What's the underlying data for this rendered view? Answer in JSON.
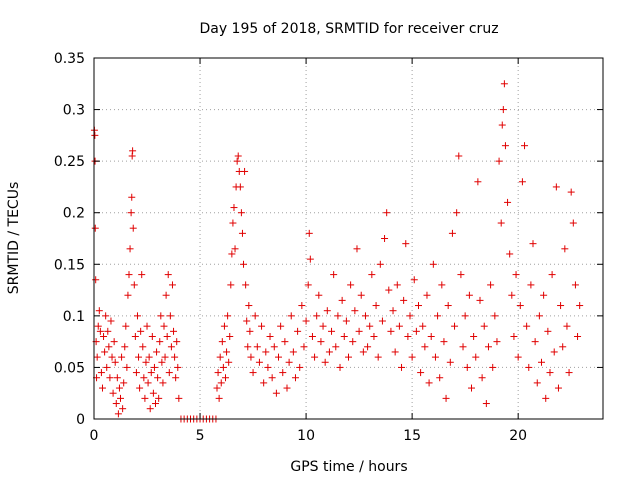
{
  "chart_data": {
    "type": "scatter",
    "title": "Day 195 of 2018, SRMTID for receiver cruz",
    "xlabel": "GPS time / hours",
    "ylabel": "SRMTID / TECUs",
    "xlim": [
      0,
      24
    ],
    "ylim": [
      0,
      0.35
    ],
    "xticks": [
      0,
      5,
      10,
      15,
      20
    ],
    "yticks": [
      0,
      0.05,
      0.1,
      0.15,
      0.2,
      0.25,
      0.3,
      0.35
    ],
    "ytick_labels": [
      "0",
      "0.05",
      "0.1",
      "0.15",
      "0.2",
      "0.25",
      "0.3",
      "0.35"
    ],
    "grid": true,
    "marker": "plus",
    "color": "#e00000",
    "series": [
      {
        "values": [
          [
            0.02,
            0.28
          ],
          [
            0.04,
            0.275
          ],
          [
            0.05,
            0.25
          ],
          [
            0.06,
            0.185
          ],
          [
            0.08,
            0.135
          ],
          [
            0.1,
            0.075
          ],
          [
            0.12,
            0.04
          ],
          [
            0.15,
            0.06
          ],
          [
            0.2,
            0.09
          ],
          [
            0.25,
            0.105
          ],
          [
            0.3,
            0.085
          ],
          [
            0.35,
            0.045
          ],
          [
            0.4,
            0.03
          ],
          [
            0.45,
            0.08
          ],
          [
            0.5,
            0.065
          ],
          [
            0.55,
            0.1
          ],
          [
            0.6,
            0.05
          ],
          [
            0.65,
            0.085
          ],
          [
            0.7,
            0.07
          ],
          [
            0.75,
            0.04
          ],
          [
            0.8,
            0.095
          ],
          [
            0.85,
            0.06
          ],
          [
            0.9,
            0.025
          ],
          [
            0.95,
            0.075
          ],
          [
            1.0,
            0.055
          ],
          [
            1.05,
            0.015
          ],
          [
            1.1,
            0.04
          ],
          [
            1.15,
            0.005
          ],
          [
            1.2,
            0.03
          ],
          [
            1.25,
            0.02
          ],
          [
            1.3,
            0.06
          ],
          [
            1.35,
            0.01
          ],
          [
            1.4,
            0.035
          ],
          [
            1.45,
            0.07
          ],
          [
            1.5,
            0.09
          ],
          [
            1.55,
            0.05
          ],
          [
            1.6,
            0.12
          ],
          [
            1.65,
            0.14
          ],
          [
            1.7,
            0.165
          ],
          [
            1.75,
            0.2
          ],
          [
            1.78,
            0.215
          ],
          [
            1.8,
            0.255
          ],
          [
            1.82,
            0.26
          ],
          [
            1.85,
            0.185
          ],
          [
            1.9,
            0.13
          ],
          [
            1.95,
            0.08
          ],
          [
            2.0,
            0.045
          ],
          [
            2.05,
            0.1
          ],
          [
            2.1,
            0.06
          ],
          [
            2.15,
            0.03
          ],
          [
            2.2,
            0.085
          ],
          [
            2.25,
            0.14
          ],
          [
            2.3,
            0.07
          ],
          [
            2.35,
            0.04
          ],
          [
            2.4,
            0.02
          ],
          [
            2.45,
            0.055
          ],
          [
            2.5,
            0.09
          ],
          [
            2.55,
            0.035
          ],
          [
            2.6,
            0.06
          ],
          [
            2.65,
            0.01
          ],
          [
            2.7,
            0.045
          ],
          [
            2.75,
            0.08
          ],
          [
            2.8,
            0.025
          ],
          [
            2.85,
            0.05
          ],
          [
            2.9,
            0.015
          ],
          [
            2.95,
            0.065
          ],
          [
            3.0,
            0.04
          ],
          [
            3.05,
            0.02
          ],
          [
            3.1,
            0.075
          ],
          [
            3.15,
            0.1
          ],
          [
            3.2,
            0.055
          ],
          [
            3.25,
            0.035
          ],
          [
            3.3,
            0.09
          ],
          [
            3.35,
            0.06
          ],
          [
            3.4,
            0.12
          ],
          [
            3.45,
            0.08
          ],
          [
            3.5,
            0.14
          ],
          [
            3.55,
            0.045
          ],
          [
            3.6,
            0.1
          ],
          [
            3.65,
            0.07
          ],
          [
            3.7,
            0.13
          ],
          [
            3.75,
            0.085
          ],
          [
            3.8,
            0.06
          ],
          [
            3.85,
            0.04
          ],
          [
            3.9,
            0.075
          ],
          [
            3.95,
            0.05
          ],
          [
            4.0,
            0.02
          ],
          [
            4.1,
            0.0
          ],
          [
            4.25,
            0.0
          ],
          [
            4.4,
            0.0
          ],
          [
            4.55,
            0.0
          ],
          [
            4.7,
            0.0
          ],
          [
            4.85,
            0.0
          ],
          [
            5.0,
            0.0
          ],
          [
            5.15,
            0.0
          ],
          [
            5.3,
            0.0
          ],
          [
            5.45,
            0.0
          ],
          [
            5.6,
            0.0
          ],
          [
            5.75,
            0.0
          ],
          [
            5.8,
            0.03
          ],
          [
            5.85,
            0.045
          ],
          [
            5.9,
            0.02
          ],
          [
            5.95,
            0.06
          ],
          [
            6.0,
            0.035
          ],
          [
            6.05,
            0.075
          ],
          [
            6.1,
            0.05
          ],
          [
            6.15,
            0.09
          ],
          [
            6.2,
            0.04
          ],
          [
            6.25,
            0.065
          ],
          [
            6.3,
            0.1
          ],
          [
            6.35,
            0.055
          ],
          [
            6.4,
            0.08
          ],
          [
            6.45,
            0.13
          ],
          [
            6.5,
            0.16
          ],
          [
            6.55,
            0.19
          ],
          [
            6.6,
            0.205
          ],
          [
            6.65,
            0.165
          ],
          [
            6.7,
            0.225
          ],
          [
            6.75,
            0.25
          ],
          [
            6.8,
            0.255
          ],
          [
            6.85,
            0.24
          ],
          [
            6.9,
            0.225
          ],
          [
            6.95,
            0.2
          ],
          [
            7.0,
            0.18
          ],
          [
            7.05,
            0.15
          ],
          [
            7.1,
            0.24
          ],
          [
            7.15,
            0.13
          ],
          [
            7.2,
            0.095
          ],
          [
            7.25,
            0.07
          ],
          [
            7.3,
            0.11
          ],
          [
            7.35,
            0.085
          ],
          [
            7.4,
            0.06
          ],
          [
            7.5,
            0.045
          ],
          [
            7.6,
            0.1
          ],
          [
            7.7,
            0.07
          ],
          [
            7.8,
            0.055
          ],
          [
            7.9,
            0.09
          ],
          [
            8.0,
            0.035
          ],
          [
            8.1,
            0.065
          ],
          [
            8.2,
            0.05
          ],
          [
            8.3,
            0.08
          ],
          [
            8.4,
            0.04
          ],
          [
            8.5,
            0.07
          ],
          [
            8.6,
            0.025
          ],
          [
            8.7,
            0.06
          ],
          [
            8.8,
            0.09
          ],
          [
            8.9,
            0.045
          ],
          [
            9.0,
            0.075
          ],
          [
            9.1,
            0.03
          ],
          [
            9.2,
            0.055
          ],
          [
            9.3,
            0.1
          ],
          [
            9.4,
            0.065
          ],
          [
            9.5,
            0.04
          ],
          [
            9.6,
            0.085
          ],
          [
            9.7,
            0.05
          ],
          [
            9.8,
            0.11
          ],
          [
            9.9,
            0.07
          ],
          [
            10.0,
            0.095
          ],
          [
            10.1,
            0.13
          ],
          [
            10.15,
            0.18
          ],
          [
            10.2,
            0.155
          ],
          [
            10.3,
            0.08
          ],
          [
            10.4,
            0.06
          ],
          [
            10.5,
            0.1
          ],
          [
            10.6,
            0.12
          ],
          [
            10.7,
            0.075
          ],
          [
            10.8,
            0.09
          ],
          [
            10.9,
            0.055
          ],
          [
            11.0,
            0.105
          ],
          [
            11.1,
            0.065
          ],
          [
            11.2,
            0.085
          ],
          [
            11.3,
            0.14
          ],
          [
            11.4,
            0.07
          ],
          [
            11.5,
            0.1
          ],
          [
            11.6,
            0.05
          ],
          [
            11.7,
            0.115
          ],
          [
            11.8,
            0.08
          ],
          [
            11.9,
            0.095
          ],
          [
            12.0,
            0.06
          ],
          [
            12.1,
            0.13
          ],
          [
            12.2,
            0.075
          ],
          [
            12.3,
            0.105
          ],
          [
            12.4,
            0.165
          ],
          [
            12.5,
            0.085
          ],
          [
            12.6,
            0.12
          ],
          [
            12.7,
            0.065
          ],
          [
            12.8,
            0.1
          ],
          [
            12.9,
            0.07
          ],
          [
            13.0,
            0.09
          ],
          [
            13.1,
            0.14
          ],
          [
            13.2,
            0.08
          ],
          [
            13.3,
            0.11
          ],
          [
            13.4,
            0.06
          ],
          [
            13.5,
            0.15
          ],
          [
            13.6,
            0.095
          ],
          [
            13.7,
            0.175
          ],
          [
            13.8,
            0.2
          ],
          [
            13.9,
            0.125
          ],
          [
            14.0,
            0.085
          ],
          [
            14.1,
            0.105
          ],
          [
            14.2,
            0.065
          ],
          [
            14.3,
            0.13
          ],
          [
            14.4,
            0.09
          ],
          [
            14.5,
            0.05
          ],
          [
            14.6,
            0.115
          ],
          [
            14.7,
            0.17
          ],
          [
            14.8,
            0.08
          ],
          [
            14.9,
            0.1
          ],
          [
            15.0,
            0.06
          ],
          [
            15.1,
            0.135
          ],
          [
            15.2,
            0.085
          ],
          [
            15.3,
            0.11
          ],
          [
            15.4,
            0.045
          ],
          [
            15.5,
            0.09
          ],
          [
            15.6,
            0.07
          ],
          [
            15.7,
            0.12
          ],
          [
            15.8,
            0.035
          ],
          [
            15.9,
            0.08
          ],
          [
            16.0,
            0.15
          ],
          [
            16.1,
            0.06
          ],
          [
            16.2,
            0.1
          ],
          [
            16.3,
            0.04
          ],
          [
            16.4,
            0.13
          ],
          [
            16.5,
            0.075
          ],
          [
            16.6,
            0.02
          ],
          [
            16.7,
            0.11
          ],
          [
            16.8,
            0.055
          ],
          [
            16.9,
            0.18
          ],
          [
            17.0,
            0.09
          ],
          [
            17.1,
            0.2
          ],
          [
            17.2,
            0.255
          ],
          [
            17.3,
            0.14
          ],
          [
            17.4,
            0.07
          ],
          [
            17.5,
            0.1
          ],
          [
            17.6,
            0.05
          ],
          [
            17.7,
            0.12
          ],
          [
            17.8,
            0.03
          ],
          [
            17.9,
            0.08
          ],
          [
            18.0,
            0.06
          ],
          [
            18.1,
            0.23
          ],
          [
            18.2,
            0.115
          ],
          [
            18.3,
            0.04
          ],
          [
            18.4,
            0.09
          ],
          [
            18.5,
            0.015
          ],
          [
            18.6,
            0.07
          ],
          [
            18.7,
            0.13
          ],
          [
            18.8,
            0.05
          ],
          [
            18.9,
            0.1
          ],
          [
            19.0,
            0.075
          ],
          [
            19.1,
            0.25
          ],
          [
            19.2,
            0.19
          ],
          [
            19.25,
            0.285
          ],
          [
            19.3,
            0.3
          ],
          [
            19.35,
            0.325
          ],
          [
            19.4,
            0.265
          ],
          [
            19.5,
            0.21
          ],
          [
            19.6,
            0.16
          ],
          [
            19.7,
            0.12
          ],
          [
            19.8,
            0.08
          ],
          [
            19.9,
            0.14
          ],
          [
            20.0,
            0.06
          ],
          [
            20.1,
            0.11
          ],
          [
            20.2,
            0.23
          ],
          [
            20.3,
            0.265
          ],
          [
            20.4,
            0.09
          ],
          [
            20.5,
            0.05
          ],
          [
            20.6,
            0.13
          ],
          [
            20.7,
            0.17
          ],
          [
            20.8,
            0.075
          ],
          [
            20.9,
            0.035
          ],
          [
            21.0,
            0.1
          ],
          [
            21.1,
            0.055
          ],
          [
            21.2,
            0.12
          ],
          [
            21.3,
            0.02
          ],
          [
            21.4,
            0.085
          ],
          [
            21.5,
            0.045
          ],
          [
            21.6,
            0.14
          ],
          [
            21.7,
            0.065
          ],
          [
            21.8,
            0.225
          ],
          [
            21.9,
            0.03
          ],
          [
            22.0,
            0.11
          ],
          [
            22.1,
            0.07
          ],
          [
            22.2,
            0.165
          ],
          [
            22.3,
            0.09
          ],
          [
            22.4,
            0.045
          ],
          [
            22.5,
            0.22
          ],
          [
            22.6,
            0.19
          ],
          [
            22.7,
            0.13
          ],
          [
            22.8,
            0.08
          ],
          [
            22.9,
            0.11
          ]
        ]
      }
    ]
  }
}
